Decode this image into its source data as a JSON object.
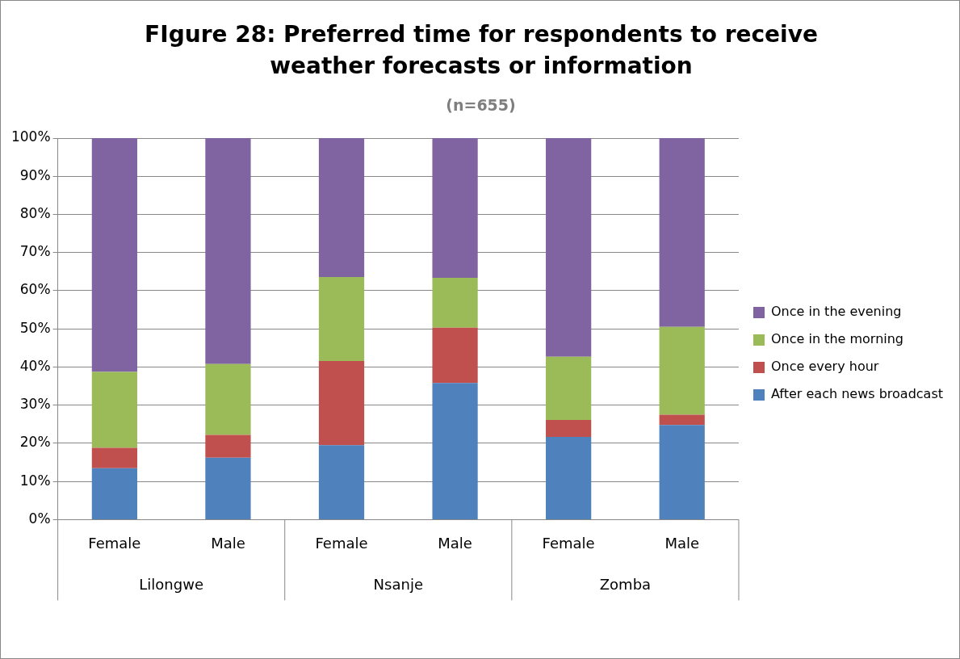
{
  "chart_data": {
    "type": "bar",
    "stacked": true,
    "title": "FIgure 28: Preferred time for respondents to receive weather forecasts or information",
    "subtitle": "(n=655)",
    "categories": [
      "Female",
      "Male",
      "Female",
      "Male",
      "Female",
      "Male"
    ],
    "annotations": [
      "Lilongwe",
      "Nsanje",
      "Zomba"
    ],
    "series": [
      {
        "name": "After each news broadcast",
        "color": "#4f81bd",
        "values": [
          13.5,
          16.2,
          19.5,
          35.8,
          21.7,
          24.8
        ]
      },
      {
        "name": "Once every hour",
        "color": "#c0504d",
        "values": [
          5.3,
          6.0,
          22.1,
          14.5,
          4.4,
          2.7
        ]
      },
      {
        "name": "Once in the morning",
        "color": "#9bbb59",
        "values": [
          19.9,
          18.6,
          22.0,
          13.1,
          16.6,
          23.0
        ]
      },
      {
        "name": "Once in the evening",
        "color": "#8064a2",
        "values": [
          61.3,
          59.2,
          36.4,
          36.6,
          57.3,
          49.5
        ]
      }
    ],
    "ylim": [
      0,
      100
    ],
    "yticks": [
      {
        "value": 0,
        "label": "0%"
      },
      {
        "value": 10,
        "label": "10%"
      },
      {
        "value": 20,
        "label": "20%"
      },
      {
        "value": 30,
        "label": "30%"
      },
      {
        "value": 40,
        "label": "40%"
      },
      {
        "value": 50,
        "label": "50%"
      },
      {
        "value": 60,
        "label": "60%"
      },
      {
        "value": 70,
        "label": "70%"
      },
      {
        "value": 80,
        "label": "80%"
      },
      {
        "value": 90,
        "label": "90%"
      },
      {
        "value": 100,
        "label": "100%"
      }
    ],
    "grid": "y",
    "legend": "right"
  }
}
